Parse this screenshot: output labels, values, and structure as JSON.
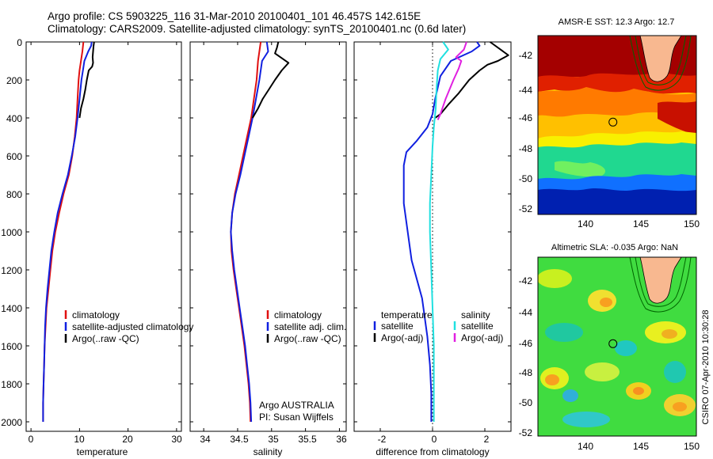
{
  "title": {
    "line1": "Argo profile: CS 5903225_116 31-Mar-2010 20100401_101 46.457S 142.615E",
    "line2": "Climatology: CARS2009. Satellite-adjusted climatology: synTS_20100401.nc (0.6d later)"
  },
  "colors": {
    "climatology": "#e01010",
    "satellite": "#1020e0",
    "argo": "#000000",
    "salinity_satellite": "#20e0e0",
    "salinity_argo": "#e020e0",
    "zero_line": "#000000"
  },
  "chart_data": [
    {
      "type": "line",
      "id": "temperature",
      "xlabel": "temperature",
      "xlim": [
        -1,
        31
      ],
      "ylim": [
        2050,
        0
      ],
      "x_ticks": [
        "0",
        "10",
        "20",
        "30"
      ],
      "y_ticks": [
        "0",
        "200",
        "400",
        "600",
        "800",
        "1000",
        "1200",
        "1400",
        "1600",
        "1800",
        "2000"
      ],
      "legend": [
        "climatology",
        "satellite-adjusted climatology",
        "Argo(..raw -QC)"
      ],
      "series": [
        {
          "name": "climatology",
          "points": [
            [
              10.8,
              0
            ],
            [
              10.6,
              50
            ],
            [
              10.3,
              100
            ],
            [
              10.0,
              150
            ],
            [
              9.8,
              200
            ],
            [
              9.6,
              300
            ],
            [
              9.4,
              400
            ],
            [
              9.0,
              500
            ],
            [
              8.5,
              600
            ],
            [
              7.8,
              700
            ],
            [
              6.7,
              800
            ],
            [
              5.8,
              900
            ],
            [
              5.0,
              1000
            ],
            [
              4.4,
              1100
            ],
            [
              4.0,
              1200
            ],
            [
              3.6,
              1300
            ],
            [
              3.2,
              1400
            ],
            [
              3.0,
              1500
            ],
            [
              2.8,
              1600
            ],
            [
              2.7,
              1700
            ],
            [
              2.6,
              1800
            ],
            [
              2.5,
              1900
            ],
            [
              2.5,
              2000
            ]
          ]
        },
        {
          "name": "satellite-adjusted climatology",
          "points": [
            [
              12.5,
              0
            ],
            [
              12.4,
              20
            ],
            [
              11.8,
              50
            ],
            [
              11.0,
              100
            ],
            [
              10.7,
              150
            ],
            [
              10.4,
              200
            ],
            [
              10.0,
              300
            ],
            [
              9.6,
              400
            ],
            [
              9.1,
              500
            ],
            [
              8.4,
              600
            ],
            [
              7.6,
              700
            ],
            [
              6.5,
              800
            ],
            [
              5.5,
              900
            ],
            [
              4.8,
              1000
            ],
            [
              4.2,
              1100
            ],
            [
              3.8,
              1200
            ],
            [
              3.4,
              1300
            ],
            [
              3.1,
              1400
            ],
            [
              2.9,
              1500
            ],
            [
              2.8,
              1600
            ],
            [
              2.7,
              1700
            ],
            [
              2.6,
              1800
            ],
            [
              2.5,
              1900
            ],
            [
              2.5,
              2000
            ]
          ]
        },
        {
          "name": "Argo(..raw -QC)",
          "points": [
            [
              13.0,
              0
            ],
            [
              12.9,
              20
            ],
            [
              12.8,
              50
            ],
            [
              12.7,
              80
            ],
            [
              12.8,
              110
            ],
            [
              12.6,
              130
            ],
            [
              11.9,
              150
            ],
            [
              11.5,
              200
            ],
            [
              11.2,
              250
            ],
            [
              10.8,
              300
            ],
            [
              10.3,
              350
            ],
            [
              10.0,
              400
            ]
          ]
        }
      ]
    },
    {
      "type": "line",
      "id": "salinity",
      "xlabel": "salinity",
      "xlim": [
        33.8,
        36.1
      ],
      "ylim": [
        2050,
        0
      ],
      "x_ticks": [
        "34",
        "34.5",
        "35",
        "35.5",
        "36"
      ],
      "legend": [
        "climatology",
        "satellite adj. clim.",
        "Argo(..raw -QC)"
      ],
      "annotation": [
        "Argo AUSTRALIA",
        "PI: Susan Wijffels"
      ],
      "series": [
        {
          "name": "climatology",
          "points": [
            [
              34.84,
              0
            ],
            [
              34.82,
              50
            ],
            [
              34.8,
              100
            ],
            [
              34.78,
              200
            ],
            [
              34.74,
              300
            ],
            [
              34.7,
              400
            ],
            [
              34.64,
              500
            ],
            [
              34.58,
              600
            ],
            [
              34.52,
              700
            ],
            [
              34.46,
              800
            ],
            [
              34.42,
              900
            ],
            [
              34.4,
              1000
            ],
            [
              34.41,
              1100
            ],
            [
              34.44,
              1200
            ],
            [
              34.48,
              1300
            ],
            [
              34.52,
              1400
            ],
            [
              34.56,
              1500
            ],
            [
              34.6,
              1600
            ],
            [
              34.63,
              1700
            ],
            [
              34.66,
              1800
            ],
            [
              34.68,
              1900
            ],
            [
              34.69,
              2000
            ]
          ]
        },
        {
          "name": "satellite adj. clim.",
          "points": [
            [
              34.93,
              0
            ],
            [
              34.95,
              50
            ],
            [
              34.86,
              100
            ],
            [
              34.82,
              200
            ],
            [
              34.77,
              300
            ],
            [
              34.72,
              400
            ],
            [
              34.66,
              500
            ],
            [
              34.6,
              600
            ],
            [
              34.54,
              700
            ],
            [
              34.47,
              800
            ],
            [
              34.42,
              900
            ],
            [
              34.4,
              1000
            ],
            [
              34.42,
              1100
            ],
            [
              34.45,
              1200
            ],
            [
              34.49,
              1300
            ],
            [
              34.53,
              1400
            ],
            [
              34.57,
              1500
            ],
            [
              34.61,
              1600
            ],
            [
              34.64,
              1700
            ],
            [
              34.67,
              1800
            ],
            [
              34.69,
              1900
            ],
            [
              34.7,
              2000
            ]
          ]
        },
        {
          "name": "Argo(..raw -QC)",
          "points": [
            [
              35.1,
              0
            ],
            [
              35.08,
              30
            ],
            [
              35.05,
              60
            ],
            [
              35.25,
              110
            ],
            [
              35.15,
              150
            ],
            [
              35.05,
              200
            ],
            [
              34.96,
              250
            ],
            [
              34.87,
              300
            ],
            [
              34.8,
              350
            ],
            [
              34.72,
              400
            ]
          ]
        }
      ]
    },
    {
      "type": "line",
      "id": "difference",
      "xlabel": "difference from climatology",
      "xlim": [
        -3,
        3
      ],
      "ylim": [
        2050,
        0
      ],
      "x_ticks": [
        "-2",
        "0",
        "2"
      ],
      "legend": [
        "temperature",
        "satellite",
        "Argo(-adj)",
        "salinity",
        "satellite",
        "Argo(-adj)"
      ],
      "series": [
        {
          "name": "temperature satellite",
          "points": [
            [
              1.7,
              0
            ],
            [
              1.8,
              20
            ],
            [
              1.5,
              50
            ],
            [
              0.7,
              100
            ],
            [
              0.3,
              180
            ],
            [
              0.1,
              300
            ],
            [
              0.0,
              380
            ],
            [
              -0.2,
              450
            ],
            [
              -0.6,
              520
            ],
            [
              -1.0,
              580
            ],
            [
              -1.1,
              650
            ],
            [
              -1.1,
              750
            ],
            [
              -1.1,
              850
            ],
            [
              -1.0,
              950
            ],
            [
              -0.9,
              1050
            ],
            [
              -0.8,
              1150
            ],
            [
              -0.6,
              1250
            ],
            [
              -0.4,
              1350
            ],
            [
              -0.3,
              1450
            ],
            [
              -0.2,
              1550
            ],
            [
              -0.1,
              1700
            ],
            [
              -0.05,
              1850
            ],
            [
              -0.05,
              2000
            ]
          ]
        },
        {
          "name": "temperature Argo(-adj)",
          "points": [
            [
              2.2,
              0
            ],
            [
              2.9,
              70
            ],
            [
              2.5,
              100
            ],
            [
              2.1,
              120
            ],
            [
              1.8,
              150
            ],
            [
              1.4,
              200
            ],
            [
              1.0,
              270
            ],
            [
              0.6,
              330
            ],
            [
              0.3,
              380
            ],
            [
              0.1,
              400
            ]
          ]
        },
        {
          "name": "salinity satellite",
          "points": [
            [
              0.4,
              0
            ],
            [
              0.6,
              40
            ],
            [
              0.3,
              90
            ],
            [
              0.2,
              150
            ],
            [
              0.15,
              250
            ],
            [
              0.12,
              350
            ],
            [
              0.05,
              450
            ],
            [
              0.0,
              550
            ],
            [
              -0.05,
              700
            ],
            [
              -0.1,
              850
            ],
            [
              -0.1,
              1000
            ],
            [
              -0.05,
              1200
            ],
            [
              0.0,
              1400
            ],
            [
              0.05,
              1600
            ],
            [
              0.05,
              1800
            ],
            [
              0.05,
              2000
            ]
          ]
        },
        {
          "name": "salinity Argo(-adj)",
          "points": [
            [
              1.3,
              0
            ],
            [
              1.2,
              40
            ],
            [
              0.9,
              80
            ],
            [
              1.1,
              100
            ],
            [
              1.0,
              140
            ],
            [
              0.8,
              200
            ],
            [
              0.5,
              300
            ],
            [
              0.3,
              380
            ],
            [
              0.2,
              410
            ]
          ]
        }
      ]
    }
  ],
  "maps": [
    {
      "title": "AMSR-E SST: 12.3 Argo: 12.7",
      "x_ticks": [
        "140",
        "145",
        "150"
      ],
      "y_ticks": [
        "-42",
        "-44",
        "-46",
        "-48",
        "-50",
        "-52"
      ],
      "xlim": [
        135.8,
        150.2
      ],
      "ylim": [
        -52.5,
        -40.8
      ],
      "marker": [
        142.615,
        -46.457
      ]
    },
    {
      "title": "Altimetric SLA: -0.035 Argo: NaN",
      "x_ticks": [
        "140",
        "145",
        "150"
      ],
      "y_ticks": [
        "-42",
        "-44",
        "-46",
        "-48",
        "-50",
        "-52"
      ],
      "xlim": [
        135.8,
        150.2
      ],
      "ylim": [
        -52.5,
        -40.8
      ],
      "marker": [
        142.615,
        -46.457
      ]
    }
  ],
  "side_label": "CSIRO 07-Apr-2010 10:30:28"
}
